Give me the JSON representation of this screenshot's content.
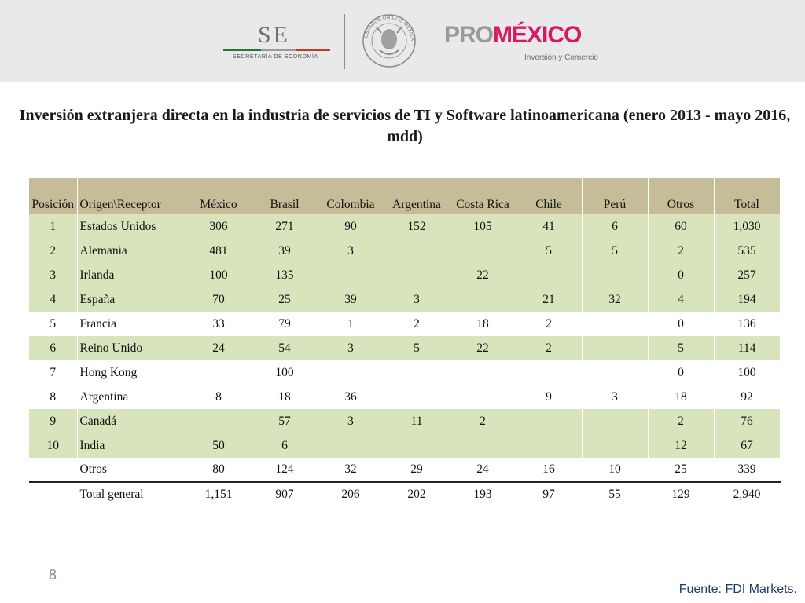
{
  "header": {
    "se_logo": {
      "letters": "SE",
      "subtitle": "SECRETARÍA DE ECONOMÍA"
    },
    "seal": {
      "text": "ESTADOS UNIDOS MEXICANOS"
    },
    "promexico": {
      "pro": "PRO",
      "mexico": "MÉXICO",
      "subtitle": "Inversión y Comercio"
    }
  },
  "title": "Inversión extranjera directa en la industria de servicios de TI y Software latinoamericana (enero 2013 - mayo 2016, mdd)",
  "table": {
    "headers": [
      "Posición",
      "Origen\\Receptor",
      "México",
      "Brasil",
      "Colombia",
      "Argentina",
      "Costa Rica",
      "Chile",
      "Perú",
      "Otros",
      "Total"
    ],
    "rows": [
      [
        "1",
        "Estados Unidos",
        "306",
        "271",
        "90",
        "152",
        "105",
        "41",
        "6",
        "60",
        "1,030"
      ],
      [
        "2",
        "Alemania",
        "481",
        "39",
        "3",
        "",
        "",
        "5",
        "5",
        "2",
        "535"
      ],
      [
        "3",
        "Irlanda",
        "100",
        "135",
        "",
        "",
        "22",
        "",
        "",
        "0",
        "257"
      ],
      [
        "4",
        "España",
        "70",
        "25",
        "39",
        "3",
        "",
        "21",
        "32",
        "4",
        "194"
      ],
      [
        "5",
        "Francia",
        "33",
        "79",
        "1",
        "2",
        "18",
        "2",
        "",
        "0",
        "136"
      ],
      [
        "6",
        "Reino Unido",
        "24",
        "54",
        "3",
        "5",
        "22",
        "2",
        "",
        "5",
        "114"
      ],
      [
        "7",
        "Hong Kong",
        "",
        "100",
        "",
        "",
        "",
        "",
        "",
        "0",
        "100"
      ],
      [
        "8",
        "Argentina",
        "8",
        "18",
        "36",
        "",
        "",
        "9",
        "3",
        "18",
        "92"
      ],
      [
        "9",
        "Canadá",
        "",
        "57",
        "3",
        "11",
        "2",
        "",
        "",
        "2",
        "76"
      ],
      [
        "10",
        "India",
        "50",
        "6",
        "",
        "",
        "",
        "",
        "",
        "12",
        "67"
      ]
    ],
    "otros": [
      "",
      "Otros",
      "80",
      "124",
      "32",
      "29",
      "24",
      "16",
      "10",
      "25",
      "339"
    ],
    "total_general": [
      "",
      "Total general",
      "1,151",
      "907",
      "206",
      "202",
      "193",
      "97",
      "55",
      "129",
      "2,940"
    ]
  },
  "footer": {
    "page_number": "8",
    "source": "Fuente: FDI Markets."
  },
  "colors": {
    "header_band": "#e9e9e9",
    "table_header": "#c4bd97",
    "row_shade": "#d8e4bc",
    "pro_grey": "#9a9a9a",
    "mexico_pink": "#d81b60",
    "source_blue": "#1f3a6e"
  }
}
